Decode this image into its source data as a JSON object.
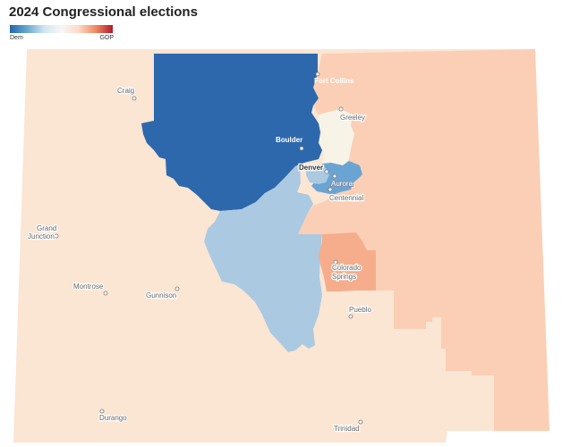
{
  "title": "2024 Congressional elections",
  "legend": {
    "low_label": "Dem",
    "high_label": "GOP",
    "colors": [
      "#2166ac",
      "#67a9cf",
      "#d1e5f0",
      "#f7f7f7",
      "#fddbc7",
      "#ef8a62",
      "#b2182b"
    ]
  },
  "map": {
    "state_fill": "#fbe5d3",
    "districts": [
      {
        "id": "co-1",
        "color": "#abcae2"
      },
      {
        "id": "co-2",
        "color": "#2d68ad"
      },
      {
        "id": "co-3",
        "color": "#fbe5d3"
      },
      {
        "id": "co-4",
        "color": "#fbcfb5"
      },
      {
        "id": "co-5",
        "color": "#f6ad8b"
      },
      {
        "id": "co-6",
        "color": "#6aa4d2"
      },
      {
        "id": "co-7",
        "color": "#abcae2"
      },
      {
        "id": "co-8",
        "color": "#f8f3e7"
      }
    ],
    "cities": [
      "Craig",
      "Fort Collins",
      "Greeley",
      "Boulder",
      "Denver",
      "Aurora",
      "Centennial",
      "Grand Junction",
      "Colorado Springs",
      "Montrose",
      "Gunnison",
      "Pueblo",
      "Durango",
      "Trinidad"
    ]
  }
}
